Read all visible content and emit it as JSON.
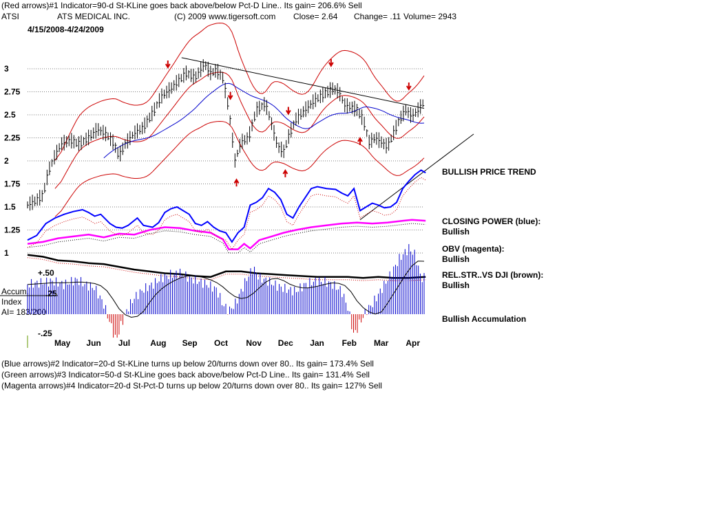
{
  "header": {
    "line1": "(Red arrows)#1 Indicator=90-d St-KLine goes back above/below Pct-D Line.. Its gain= 206.6% Sell",
    "ticker": "ATSI",
    "company": "ATS MEDICAL INC.",
    "copyright": "(C) 2009 www.tigersoft.com",
    "close": "Close=  2.64",
    "change": "Change= .11",
    "volume": "Volume= 2943",
    "date_range": "4/15/2008-4/24/2009"
  },
  "footer": {
    "line1": "(Blue arrows)#2 Indicator=20-d St-KLine turns up below 20/turns down over 80.. Its gain= 173.4% Sell",
    "line2": "(Green arrows)#3 Indicator=50-d St-KLine goes back above/below Pct-D Line.. Its gain= 131.4% Sell",
    "line3": "(Magenta arrows)#4 Indicator=20-d St-Pct-D turns up below 20/turns down over 80.. Its gain= 127% Sell"
  },
  "legend": {
    "bullish_trend": "BULLISH PRICE TREND",
    "closing_power": "CLOSING POWER (blue):",
    "closing_power_status": "Bullish",
    "obv": "OBV (magenta):",
    "obv_status": "Bullish",
    "relstr": "REL.STR..VS DJI (brown):",
    "relstr_status": "Bullish",
    "accum_status": "Bullish Accumulation"
  },
  "accum_panel": {
    "label1": "Accum.",
    "label2": "Index",
    "ai_value": "AI= 183/200",
    "tick_high": "+.50",
    "tick_mid": ".25",
    "tick_low": "-.25"
  },
  "colors": {
    "price": "#000000",
    "bands": "#cc0000",
    "ma_blue": "#0000cc",
    "closing_power": "#0000ff",
    "obv": "#ff00ff",
    "relstr": "#000000",
    "accum_pos": "#0000cc",
    "accum_neg": "#cc0000",
    "sell_arrow": "#cc0000"
  },
  "chart_data": {
    "type": "line",
    "title": "ATS MEDICAL INC.",
    "y_ticks": [
      "3",
      "2.75",
      "2.5",
      "2.25",
      "2",
      "1.75",
      "1.5",
      "1.25",
      "1"
    ],
    "x_ticks": [
      "May",
      "Jun",
      "Jul",
      "Aug",
      "Sep",
      "Oct",
      "Nov",
      "Dec",
      "Jan",
      "Feb",
      "Mar",
      "Apr"
    ],
    "ylim": [
      0.95,
      3.25
    ],
    "grid": true,
    "x_index_range": [
      0,
      260
    ],
    "price_close": [
      [
        0,
        1.52
      ],
      [
        5,
        1.56
      ],
      [
        10,
        1.62
      ],
      [
        14,
        1.9
      ],
      [
        18,
        2.05
      ],
      [
        22,
        2.18
      ],
      [
        28,
        2.22
      ],
      [
        34,
        2.18
      ],
      [
        40,
        2.25
      ],
      [
        46,
        2.34
      ],
      [
        52,
        2.28
      ],
      [
        56,
        2.2
      ],
      [
        60,
        2.05
      ],
      [
        64,
        2.18
      ],
      [
        70,
        2.3
      ],
      [
        76,
        2.36
      ],
      [
        82,
        2.52
      ],
      [
        88,
        2.7
      ],
      [
        94,
        2.78
      ],
      [
        98,
        2.85
      ],
      [
        104,
        2.95
      ],
      [
        110,
        2.9
      ],
      [
        116,
        3.05
      ],
      [
        120,
        2.95
      ],
      [
        124,
        2.98
      ],
      [
        128,
        2.9
      ],
      [
        132,
        2.55
      ],
      [
        136,
        2.0
      ],
      [
        140,
        2.2
      ],
      [
        145,
        2.25
      ],
      [
        150,
        2.55
      ],
      [
        156,
        2.62
      ],
      [
        160,
        2.4
      ],
      [
        164,
        2.15
      ],
      [
        168,
        2.1
      ],
      [
        172,
        2.3
      ],
      [
        176,
        2.45
      ],
      [
        182,
        2.55
      ],
      [
        188,
        2.65
      ],
      [
        194,
        2.72
      ],
      [
        200,
        2.78
      ],
      [
        204,
        2.75
      ],
      [
        208,
        2.6
      ],
      [
        212,
        2.58
      ],
      [
        216,
        2.55
      ],
      [
        220,
        2.45
      ],
      [
        224,
        2.2
      ],
      [
        228,
        2.25
      ],
      [
        232,
        2.2
      ],
      [
        236,
        2.15
      ],
      [
        240,
        2.3
      ],
      [
        244,
        2.45
      ],
      [
        248,
        2.55
      ],
      [
        252,
        2.48
      ],
      [
        256,
        2.55
      ],
      [
        260,
        2.64
      ]
    ],
    "sell_arrows_x": [
      92,
      133,
      171,
      199,
      250
    ],
    "buy_arrows_x": [
      137,
      169,
      218
    ],
    "downtrend_line": [
      [
        101,
        3.12
      ],
      [
        260,
        2.57
      ]
    ],
    "uptrend_line": [
      [
        218,
        1.36
      ],
      [
        262,
        2.0
      ]
    ],
    "closing_power": [
      [
        0,
        1.14
      ],
      [
        6,
        1.19
      ],
      [
        12,
        1.32
      ],
      [
        18,
        1.38
      ],
      [
        24,
        1.42
      ],
      [
        30,
        1.45
      ],
      [
        36,
        1.47
      ],
      [
        40,
        1.44
      ],
      [
        44,
        1.4
      ],
      [
        48,
        1.42
      ],
      [
        54,
        1.32
      ],
      [
        58,
        1.28
      ],
      [
        62,
        1.27
      ],
      [
        66,
        1.3
      ],
      [
        72,
        1.38
      ],
      [
        76,
        1.3
      ],
      [
        82,
        1.28
      ],
      [
        86,
        1.33
      ],
      [
        90,
        1.44
      ],
      [
        94,
        1.48
      ],
      [
        98,
        1.5
      ],
      [
        102,
        1.46
      ],
      [
        106,
        1.42
      ],
      [
        110,
        1.32
      ],
      [
        114,
        1.3
      ],
      [
        118,
        1.34
      ],
      [
        122,
        1.28
      ],
      [
        126,
        1.24
      ],
      [
        130,
        1.22
      ],
      [
        134,
        1.12
      ],
      [
        138,
        1.22
      ],
      [
        142,
        1.28
      ],
      [
        146,
        1.52
      ],
      [
        150,
        1.55
      ],
      [
        154,
        1.6
      ],
      [
        158,
        1.7
      ],
      [
        162,
        1.66
      ],
      [
        166,
        1.58
      ],
      [
        170,
        1.42
      ],
      [
        174,
        1.38
      ],
      [
        178,
        1.5
      ],
      [
        182,
        1.6
      ],
      [
        186,
        1.7
      ],
      [
        190,
        1.72
      ],
      [
        196,
        1.7
      ],
      [
        202,
        1.69
      ],
      [
        206,
        1.65
      ],
      [
        210,
        1.62
      ],
      [
        214,
        1.7
      ],
      [
        218,
        1.46
      ],
      [
        222,
        1.5
      ],
      [
        226,
        1.54
      ],
      [
        230,
        1.52
      ],
      [
        234,
        1.49
      ],
      [
        238,
        1.5
      ],
      [
        242,
        1.55
      ],
      [
        246,
        1.7
      ],
      [
        250,
        1.78
      ],
      [
        254,
        1.85
      ],
      [
        258,
        1.9
      ],
      [
        261,
        1.87
      ]
    ],
    "obv": [
      [
        0,
        1.1
      ],
      [
        10,
        1.12
      ],
      [
        20,
        1.16
      ],
      [
        30,
        1.18
      ],
      [
        40,
        1.2
      ],
      [
        50,
        1.17
      ],
      [
        60,
        1.21
      ],
      [
        70,
        1.2
      ],
      [
        80,
        1.25
      ],
      [
        90,
        1.28
      ],
      [
        100,
        1.27
      ],
      [
        110,
        1.24
      ],
      [
        120,
        1.22
      ],
      [
        128,
        1.15
      ],
      [
        132,
        1.04
      ],
      [
        138,
        1.04
      ],
      [
        142,
        1.1
      ],
      [
        146,
        1.05
      ],
      [
        152,
        1.14
      ],
      [
        160,
        1.18
      ],
      [
        168,
        1.22
      ],
      [
        176,
        1.25
      ],
      [
        186,
        1.28
      ],
      [
        196,
        1.3
      ],
      [
        206,
        1.32
      ],
      [
        216,
        1.33
      ],
      [
        226,
        1.32
      ],
      [
        236,
        1.33
      ],
      [
        246,
        1.35
      ],
      [
        252,
        1.36
      ],
      [
        261,
        1.35
      ]
    ],
    "rel_strength": [
      [
        0,
        0.98
      ],
      [
        10,
        0.96
      ],
      [
        20,
        0.92
      ],
      [
        30,
        0.91
      ],
      [
        40,
        0.89
      ],
      [
        50,
        0.88
      ],
      [
        60,
        0.85
      ],
      [
        70,
        0.82
      ],
      [
        80,
        0.8
      ],
      [
        90,
        0.78
      ],
      [
        100,
        0.77
      ],
      [
        110,
        0.75
      ],
      [
        120,
        0.74
      ],
      [
        130,
        0.8
      ],
      [
        140,
        0.8
      ],
      [
        150,
        0.78
      ],
      [
        160,
        0.77
      ],
      [
        170,
        0.76
      ],
      [
        180,
        0.75
      ],
      [
        190,
        0.74
      ],
      [
        200,
        0.74
      ],
      [
        210,
        0.74
      ],
      [
        220,
        0.73
      ],
      [
        230,
        0.74
      ],
      [
        240,
        0.73
      ],
      [
        250,
        0.73
      ],
      [
        261,
        0.74
      ]
    ],
    "accum_index": [
      [
        0,
        0.18
      ],
      [
        8,
        0.19
      ],
      [
        16,
        0.2
      ],
      [
        24,
        0.18
      ],
      [
        32,
        0.21
      ],
      [
        38,
        0.18
      ],
      [
        44,
        0.16
      ],
      [
        50,
        0.06
      ],
      [
        54,
        -0.05
      ],
      [
        58,
        -0.16
      ],
      [
        62,
        -0.05
      ],
      [
        66,
        0.04
      ],
      [
        70,
        0.1
      ],
      [
        76,
        0.15
      ],
      [
        82,
        0.18
      ],
      [
        88,
        0.22
      ],
      [
        94,
        0.24
      ],
      [
        100,
        0.25
      ],
      [
        106,
        0.22
      ],
      [
        112,
        0.2
      ],
      [
        118,
        0.18
      ],
      [
        124,
        0.15
      ],
      [
        128,
        0.06
      ],
      [
        132,
        0.02
      ],
      [
        136,
        0.06
      ],
      [
        140,
        0.14
      ],
      [
        144,
        0.22
      ],
      [
        148,
        0.28
      ],
      [
        152,
        0.22
      ],
      [
        158,
        0.2
      ],
      [
        164,
        0.17
      ],
      [
        170,
        0.15
      ],
      [
        176,
        0.14
      ],
      [
        182,
        0.18
      ],
      [
        188,
        0.2
      ],
      [
        194,
        0.2
      ],
      [
        200,
        0.18
      ],
      [
        206,
        0.14
      ],
      [
        210,
        0.04
      ],
      [
        214,
        -0.13
      ],
      [
        218,
        -0.05
      ],
      [
        222,
        0.02
      ],
      [
        226,
        0.06
      ],
      [
        232,
        0.15
      ],
      [
        238,
        0.24
      ],
      [
        244,
        0.34
      ],
      [
        250,
        0.4
      ],
      [
        254,
        0.36
      ],
      [
        258,
        0.22
      ],
      [
        261,
        0.22
      ]
    ]
  }
}
